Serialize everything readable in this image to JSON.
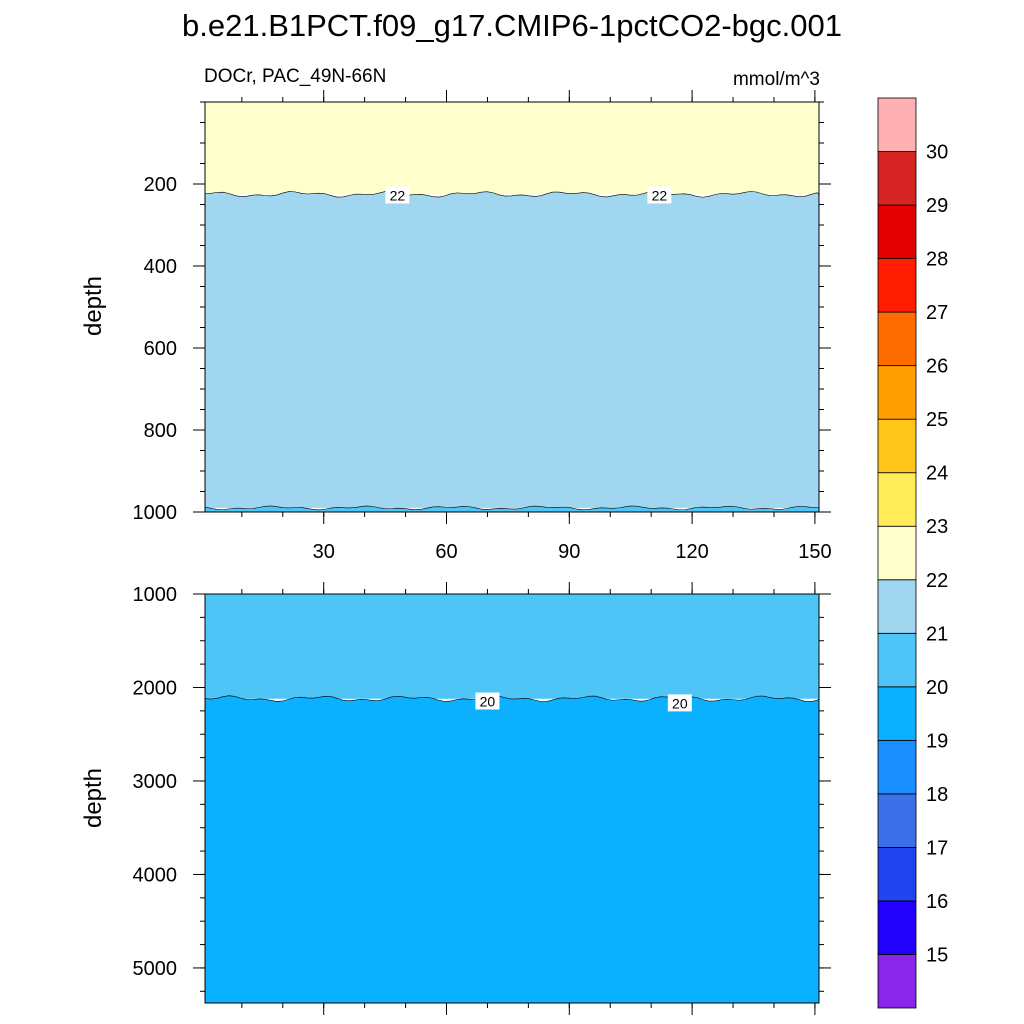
{
  "title": "b.e21.B1PCT.f09_g17.CMIP6-1pctCO2-bgc.001",
  "chart_data": {
    "type": "heatmap",
    "variable": "DOCr, PAC_49N-66N",
    "units": "mmol/m^3",
    "x_ticks": [
      30,
      60,
      90,
      120,
      150
    ],
    "xlim": [
      1,
      151
    ],
    "upper_panel": {
      "ylabel": "depth",
      "ylim": [
        0,
        1000
      ],
      "y_ticks": [
        200,
        400,
        600,
        800,
        1000
      ],
      "bands": [
        {
          "from": 0,
          "to": 225,
          "range": "22-23",
          "color": "#ffffcc"
        },
        {
          "from": 225,
          "to": 990,
          "range": "21-22",
          "color": "#a0d6ef"
        },
        {
          "from": 990,
          "to": 1000,
          "range": "20-21",
          "color": "#4fc4f6"
        }
      ],
      "contour_labels": [
        {
          "text": "22",
          "x": 48,
          "y": 228
        },
        {
          "text": "22",
          "x": 112,
          "y": 228
        }
      ]
    },
    "lower_panel": {
      "ylabel": "depth",
      "ylim": [
        1000,
        5375
      ],
      "y_ticks": [
        1000,
        2000,
        3000,
        4000,
        5000
      ],
      "bands": [
        {
          "from": 1000,
          "to": 2120,
          "range": "20-21",
          "color": "#4fc4f6"
        },
        {
          "from": 2120,
          "to": 5375,
          "range": "19-20",
          "color": "#0bb1fe"
        }
      ],
      "contour_labels": [
        {
          "text": "20",
          "x": 70,
          "y": 2150
        },
        {
          "text": "20",
          "x": 117,
          "y": 2170
        }
      ]
    },
    "colorbar": {
      "levels": [
        15,
        16,
        17,
        18,
        19,
        20,
        21,
        22,
        23,
        24,
        25,
        26,
        27,
        28,
        29,
        30
      ],
      "colors": [
        "#8a26ea",
        "#2300fc",
        "#2244ee",
        "#3b70e9",
        "#1a8efe",
        "#0bb1fe",
        "#4fc4f6",
        "#a0d6ef",
        "#ffffcc",
        "#ffec58",
        "#ffc519",
        "#ff9e00",
        "#ff6c00",
        "#ff1f00",
        "#e20000",
        "#d52423",
        "#ffb0b3"
      ]
    }
  }
}
